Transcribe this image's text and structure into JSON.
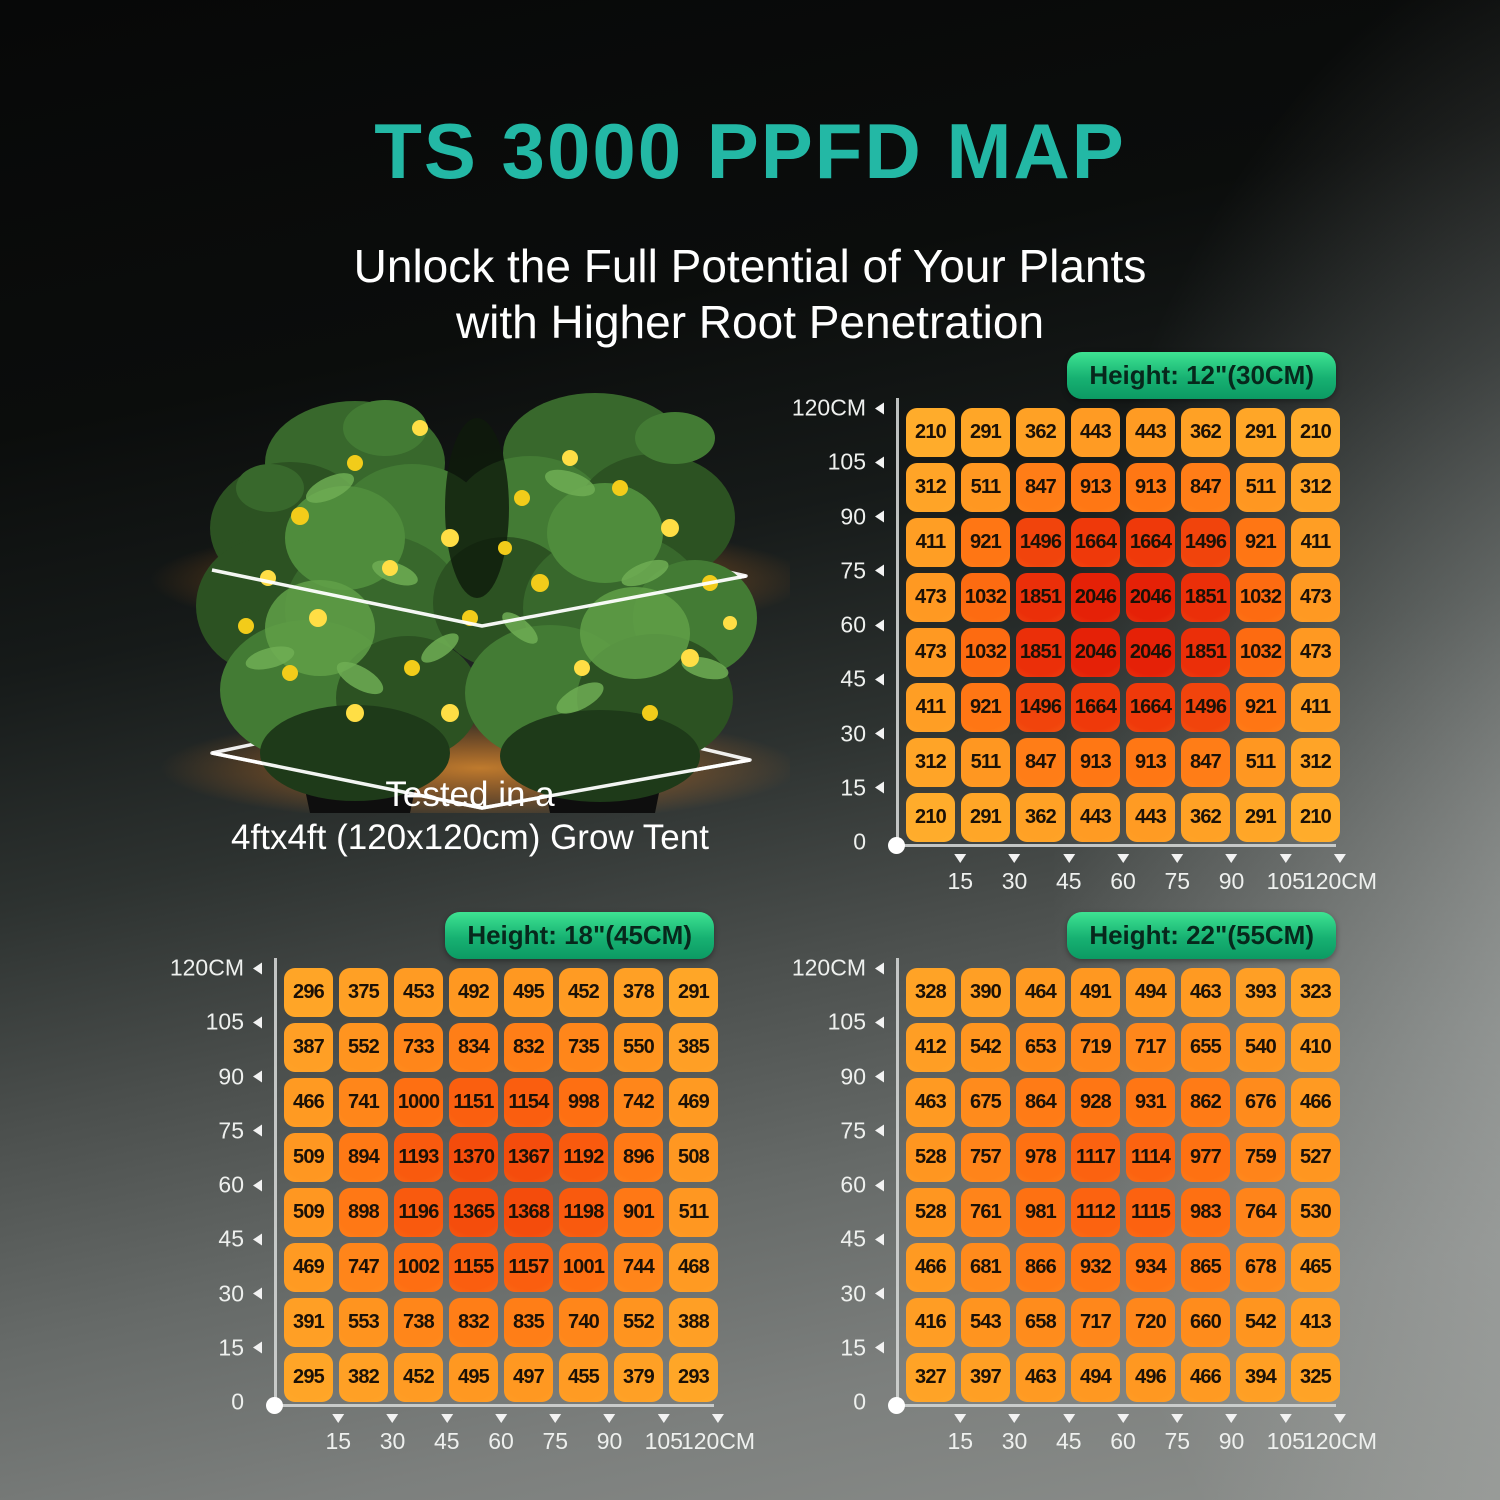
{
  "page": {
    "title": "TS 3000 PPFD MAP",
    "subtitle_line1": "Unlock the Full Potential of Your Plants",
    "subtitle_line2": "with Higher Root Penetration",
    "caption_line1": "Tested in a",
    "caption_line2": "4ftx4ft (120x120cm) Grow Tent"
  },
  "colors": {
    "accent_teal": "#23B8A5",
    "badge_gradient_top": "#3EE392",
    "badge_gradient_bottom": "#0C9A63",
    "badge_text": "#07281c",
    "axis_line": "#d2d4d3",
    "axis_text": "#eef0ee",
    "cell_text": "#1c1106"
  },
  "heat": {
    "ramp": [
      [
        200,
        "#FFAD2B"
      ],
      [
        300,
        "#FFA527"
      ],
      [
        450,
        "#FF9B23"
      ],
      [
        550,
        "#FF941F"
      ],
      [
        750,
        "#FF851A"
      ],
      [
        950,
        "#FF7413"
      ],
      [
        1100,
        "#FC6410"
      ],
      [
        1250,
        "#F7540D"
      ],
      [
        1450,
        "#F2470C"
      ],
      [
        1700,
        "#EE370A"
      ],
      [
        1900,
        "#EA2C09"
      ],
      [
        2046,
        "#E52107"
      ]
    ],
    "edge_mix": "#FFC846",
    "edge_amount": 0.42
  },
  "axes": {
    "y_labels": [
      "120CM",
      "105",
      "90",
      "75",
      "60",
      "45",
      "30",
      "15",
      "0"
    ],
    "x_labels": [
      "15",
      "30",
      "45",
      "60",
      "75",
      "90",
      "105",
      "120CM"
    ]
  },
  "chart_data": [
    {
      "type": "heatmap",
      "title": "Height: 12\"(30CM)",
      "x_cm": [
        15,
        30,
        45,
        60,
        75,
        90,
        105,
        120
      ],
      "y_cm": [
        120,
        105,
        90,
        75,
        60,
        45,
        30,
        15
      ],
      "values": [
        [
          210,
          291,
          362,
          443,
          443,
          362,
          291,
          210
        ],
        [
          312,
          511,
          847,
          913,
          913,
          847,
          511,
          312
        ],
        [
          411,
          921,
          1496,
          1664,
          1664,
          1496,
          921,
          411
        ],
        [
          473,
          1032,
          1851,
          2046,
          2046,
          1851,
          1032,
          473
        ],
        [
          473,
          1032,
          1851,
          2046,
          2046,
          1851,
          1032,
          473
        ],
        [
          411,
          921,
          1496,
          1664,
          1664,
          1496,
          921,
          411
        ],
        [
          312,
          511,
          847,
          913,
          913,
          847,
          511,
          312
        ],
        [
          210,
          291,
          362,
          443,
          443,
          362,
          291,
          210
        ]
      ]
    },
    {
      "type": "heatmap",
      "title": "Height: 18\"(45CM)",
      "x_cm": [
        15,
        30,
        45,
        60,
        75,
        90,
        105,
        120
      ],
      "y_cm": [
        120,
        105,
        90,
        75,
        60,
        45,
        30,
        15
      ],
      "values": [
        [
          296,
          375,
          453,
          492,
          495,
          452,
          378,
          291
        ],
        [
          387,
          552,
          733,
          834,
          832,
          735,
          550,
          385
        ],
        [
          466,
          741,
          1000,
          1151,
          1154,
          998,
          742,
          469
        ],
        [
          509,
          894,
          1193,
          1370,
          1367,
          1192,
          896,
          508
        ],
        [
          509,
          898,
          1196,
          1365,
          1368,
          1198,
          901,
          511
        ],
        [
          469,
          747,
          1002,
          1155,
          1157,
          1001,
          744,
          468
        ],
        [
          391,
          553,
          738,
          832,
          835,
          740,
          552,
          388
        ],
        [
          295,
          382,
          452,
          495,
          497,
          455,
          379,
          293
        ]
      ]
    },
    {
      "type": "heatmap",
      "title": "Height: 22\"(55CM)",
      "x_cm": [
        15,
        30,
        45,
        60,
        75,
        90,
        105,
        120
      ],
      "y_cm": [
        120,
        105,
        90,
        75,
        60,
        45,
        30,
        15
      ],
      "values": [
        [
          328,
          390,
          464,
          491,
          494,
          463,
          393,
          323
        ],
        [
          412,
          542,
          653,
          719,
          717,
          655,
          540,
          410
        ],
        [
          463,
          675,
          864,
          928,
          931,
          862,
          676,
          466
        ],
        [
          528,
          757,
          978,
          1117,
          1114,
          977,
          759,
          527
        ],
        [
          528,
          761,
          981,
          1112,
          1115,
          983,
          764,
          530
        ],
        [
          466,
          681,
          866,
          932,
          934,
          865,
          678,
          465
        ],
        [
          416,
          543,
          658,
          717,
          720,
          660,
          542,
          413
        ],
        [
          327,
          397,
          463,
          494,
          496,
          466,
          394,
          325
        ]
      ]
    }
  ]
}
